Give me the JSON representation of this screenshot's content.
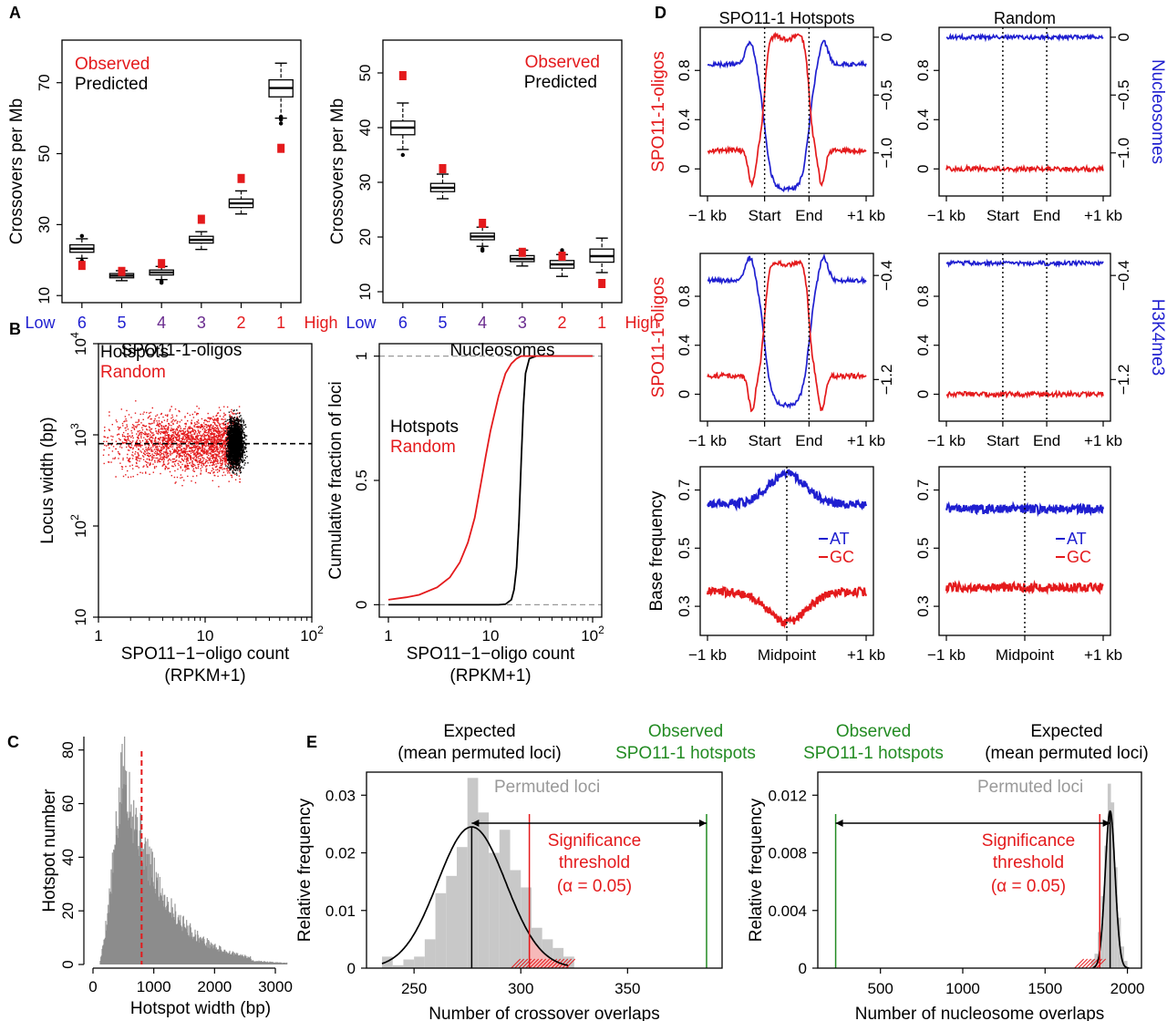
{
  "colors": {
    "red": "#e41a1c",
    "blue": "#1f1fd0",
    "black": "#000000",
    "grey": "#c8c8c8",
    "green": "#228b22",
    "purple": "#6a2c8f"
  },
  "panel_labels": {
    "a": "A",
    "b": "B",
    "c": "C",
    "d": "D",
    "e": "E"
  },
  "chart_data": [
    {
      "panel": "A-left",
      "type": "box",
      "ylabel": "Crossovers per Mb",
      "xlabel": "SPO11-1-oligos",
      "legend": [
        "Observed",
        "Predicted"
      ],
      "ylim": [
        8,
        82
      ],
      "yticks": [
        "10",
        "30",
        "50",
        "70"
      ],
      "categories": [
        "6",
        "5",
        "4",
        "3",
        "2",
        "1"
      ],
      "low_label": "Low",
      "high_label": "High",
      "predicted": [
        {
          "min": 20.5,
          "q1": 22.2,
          "med": 23.2,
          "q3": 24.3,
          "max": 26.0,
          "outliers": [
            19.8,
            26.8
          ]
        },
        {
          "min": 14.2,
          "q1": 15.0,
          "med": 15.6,
          "q3": 16.2,
          "max": 17.0,
          "outliers": []
        },
        {
          "min": 14.5,
          "q1": 15.8,
          "med": 16.5,
          "q3": 17.2,
          "max": 18.2,
          "outliers": [
            14.0,
            13.6
          ]
        },
        {
          "min": 23.0,
          "q1": 24.8,
          "med": 25.7,
          "q3": 26.7,
          "max": 28.0,
          "outliers": []
        },
        {
          "min": 33.0,
          "q1": 34.8,
          "med": 36.0,
          "q3": 37.2,
          "max": 39.5,
          "outliers": []
        },
        {
          "min": 60.0,
          "q1": 66.0,
          "med": 68.5,
          "q3": 70.8,
          "max": 75.5,
          "outliers": [
            58.5,
            59.6,
            60.4
          ]
        }
      ],
      "observed": [
        18.5,
        16.8,
        19.0,
        31.5,
        43.0,
        51.5
      ]
    },
    {
      "panel": "A-right",
      "type": "box",
      "ylabel": "Crossovers per Mb",
      "xlabel": "Nucleosomes",
      "legend": [
        "Observed",
        "Predicted"
      ],
      "ylim": [
        8,
        56
      ],
      "yticks": [
        "10",
        "20",
        "30",
        "40",
        "50"
      ],
      "categories": [
        "6",
        "5",
        "4",
        "3",
        "2",
        "1"
      ],
      "low_label": "Low",
      "high_label": "High",
      "predicted": [
        {
          "min": 36.0,
          "q1": 38.7,
          "med": 40.0,
          "q3": 41.2,
          "max": 44.5,
          "outliers": [
            35.0
          ]
        },
        {
          "min": 27.0,
          "q1": 28.3,
          "med": 29.0,
          "q3": 29.8,
          "max": 31.5,
          "outliers": []
        },
        {
          "min": 18.3,
          "q1": 19.5,
          "med": 20.1,
          "q3": 20.7,
          "max": 21.8,
          "outliers": [
            17.5,
            17.8
          ]
        },
        {
          "min": 14.7,
          "q1": 15.5,
          "med": 16.0,
          "q3": 16.6,
          "max": 17.6,
          "outliers": []
        },
        {
          "min": 12.8,
          "q1": 14.3,
          "med": 15.0,
          "q3": 15.7,
          "max": 16.8,
          "outliers": [
            17.3,
            17.6
          ]
        },
        {
          "min": 13.5,
          "q1": 15.4,
          "med": 16.5,
          "q3": 17.8,
          "max": 19.8,
          "outliers": []
        }
      ],
      "observed": [
        49.5,
        32.5,
        22.5,
        17.2,
        16.5,
        11.5
      ]
    },
    {
      "panel": "B-left",
      "type": "scatter",
      "xlabel": "SPO11−1−oligo count",
      "xlabel2": "(RPKM+1)",
      "ylabel": "Locus width (bp)",
      "legend": [
        "Hotspots",
        "Random"
      ],
      "xscale": "log",
      "yscale": "log",
      "xlim": [
        1,
        100
      ],
      "ylim": [
        10,
        10000
      ],
      "xticks": [
        {
          "v": 1,
          "b": "1"
        },
        {
          "v": 10,
          "b": "10"
        },
        {
          "v": 100,
          "b": "10",
          "e": "2"
        }
      ],
      "yticks": [
        {
          "v": 10,
          "b": "10"
        },
        {
          "v": 100,
          "b": "10",
          "e": "2"
        },
        {
          "v": 1000,
          "b": "10",
          "e": "3"
        },
        {
          "v": 10000,
          "b": "10",
          "e": "4"
        }
      ],
      "hline": 800,
      "hotspot_count_range": [
        15,
        25
      ],
      "random_count_range": [
        1,
        22
      ]
    },
    {
      "panel": "B-right",
      "type": "line",
      "xlabel": "SPO11−1−oligo count",
      "xlabel2": "(RPKM+1)",
      "ylabel": "Cumulative fraction of loci",
      "legend": [
        "Hotspots",
        "Random"
      ],
      "xscale": "log",
      "xlim": [
        1,
        100
      ],
      "ylim": [
        0,
        1
      ],
      "xticks": [
        {
          "v": 1,
          "b": "1"
        },
        {
          "v": 10,
          "b": "10"
        },
        {
          "v": 100,
          "b": "10",
          "e": "2"
        }
      ],
      "yticks": [
        {
          "v": 0,
          "t": "0"
        },
        {
          "v": 0.5,
          "t": "0.5"
        },
        {
          "v": 1,
          "t": "1"
        }
      ],
      "series": [
        {
          "name": "Hotspots",
          "x": [
            1,
            12,
            14,
            16,
            17,
            18,
            19,
            20,
            21,
            22,
            24,
            28,
            100
          ],
          "y": [
            0,
            0,
            0.002,
            0.02,
            0.06,
            0.15,
            0.33,
            0.58,
            0.8,
            0.93,
            0.99,
            1,
            1
          ]
        },
        {
          "name": "Random",
          "x": [
            1,
            1.5,
            2,
            3,
            4,
            5,
            6,
            7,
            8,
            9,
            10,
            12,
            14,
            16,
            18,
            20,
            22,
            30,
            100
          ],
          "y": [
            0.02,
            0.03,
            0.04,
            0.07,
            0.11,
            0.17,
            0.25,
            0.35,
            0.48,
            0.6,
            0.7,
            0.84,
            0.93,
            0.97,
            0.99,
            1,
            1,
            1,
            1
          ]
        }
      ]
    },
    {
      "panel": "C",
      "type": "histogram",
      "xlabel": "Hotspot width (bp)",
      "ylabel": "Hotspot number",
      "xlim": [
        0,
        3300
      ],
      "ylim": [
        0,
        85
      ],
      "xticks": [
        "0",
        "1000",
        "2000",
        "3000"
      ],
      "yticks": [
        "0",
        "20",
        "40",
        "60",
        "80"
      ],
      "median_line": 800,
      "peak": 500,
      "peak_count": 75
    },
    {
      "panel": "D-top-left",
      "type": "line",
      "title": "SPO11-1 Hotspots",
      "ylabel_left": "SPO11-1-oligos",
      "ylabel_right": "",
      "xticks": [
        "−1 kb",
        "Start",
        "End",
        "+1 kb"
      ],
      "yticks_left": [
        "0",
        "0.4",
        "0.8"
      ],
      "yticks_right": [
        "0",
        "−0.5",
        "−1.0"
      ],
      "oligos": "hotspot",
      "other": "nuc"
    },
    {
      "panel": "D-top-right",
      "type": "line",
      "title": "Random",
      "ylabel_left": "",
      "ylabel_right": "Nucleosomes",
      "xticks": [
        "−1 kb",
        "Start",
        "End",
        "+1 kb"
      ],
      "yticks_left": [
        "0",
        "0.4",
        "0.8"
      ],
      "yticks_right": [
        "0",
        "−0.5",
        "−1.0"
      ],
      "oligos": "flat",
      "other": "flat"
    },
    {
      "panel": "D-mid-left",
      "type": "line",
      "title": "",
      "ylabel_left": "SPO11-1-oligos",
      "ylabel_right": "",
      "xticks": [
        "−1 kb",
        "Start",
        "End",
        "+1 kb"
      ],
      "yticks_left": [
        "0",
        "0.4",
        "0.8"
      ],
      "yticks_right": [
        "−0.4",
        "−1.2"
      ],
      "oligos": "hotspot",
      "other": "h3k"
    },
    {
      "panel": "D-mid-right",
      "type": "line",
      "title": "",
      "ylabel_left": "",
      "ylabel_right": "H3K4me3",
      "xticks": [
        "−1 kb",
        "Start",
        "End",
        "+1 kb"
      ],
      "yticks_left": [
        "0",
        "0.4",
        "0.8"
      ],
      "yticks_right": [
        "−0.4",
        "−1.2"
      ],
      "oligos": "flat",
      "other": "flat"
    },
    {
      "panel": "D-bottom-left",
      "type": "line",
      "ylabel": "Base frequency",
      "xticks": [
        "−1 kb",
        "Midpoint",
        "+1 kb"
      ],
      "yticks": [
        "0.3",
        "0.5",
        "0.7"
      ],
      "legend": [
        "AT",
        "GC"
      ],
      "ylim": [
        0.2,
        0.78
      ],
      "series": [
        {
          "name": "AT",
          "edge": 0.65,
          "center": 0.755
        },
        {
          "name": "GC",
          "edge": 0.35,
          "center": 0.245
        }
      ]
    },
    {
      "panel": "D-bottom-right",
      "type": "line",
      "xticks": [
        "−1 kb",
        "Midpoint",
        "+1 kb"
      ],
      "yticks": [
        "0.3",
        "0.5",
        "0.7"
      ],
      "legend": [
        "AT",
        "GC"
      ],
      "ylim": [
        0.2,
        0.78
      ],
      "series": [
        {
          "name": "AT",
          "edge": 0.635,
          "center": 0.635
        },
        {
          "name": "GC",
          "edge": 0.365,
          "center": 0.365
        }
      ]
    },
    {
      "panel": "E-left",
      "type": "histogram",
      "xlabel": "Number of crossover overlaps",
      "ylabel": "Relative frequency",
      "xlim": [
        232,
        390
      ],
      "ylim": [
        0,
        0.034
      ],
      "xticks": [
        "250",
        "300",
        "350"
      ],
      "yticks": [
        "0",
        "0.01",
        "0.02",
        "0.03"
      ],
      "bins": {
        "start": 235,
        "width": 5,
        "values": [
          0.002,
          0.0005,
          0.0015,
          0.002,
          0.005,
          0.013,
          0.016,
          0.021,
          0.033,
          0.027,
          0.02,
          0.024,
          0.017,
          0.014,
          0.007,
          0.005,
          0.0035,
          0.002
        ]
      },
      "expected": 277,
      "threshold": 304,
      "observed": 387,
      "permuted_label": "Permuted loci",
      "expected_label": [
        "Expected",
        "(mean permuted loci)"
      ],
      "observed_label": [
        "Observed",
        "SPO11-1 hotspots"
      ],
      "threshold_label": [
        "Significance",
        "threshold",
        "(α = 0.05)"
      ]
    },
    {
      "panel": "E-right",
      "type": "histogram",
      "xlabel": "Number of nucleosome overlaps",
      "ylabel": "Relative frequency",
      "xlim": [
        175,
        2030
      ],
      "ylim": [
        0,
        0.0136
      ],
      "xticks": [
        "500",
        "1000",
        "1500",
        "2000"
      ],
      "yticks": [
        "0",
        "0.004",
        "0.008",
        "0.012"
      ],
      "bins": {
        "start": 1780,
        "width": 20,
        "values": [
          0.0006,
          0.001,
          0.0025,
          0.005,
          0.0085,
          0.0128,
          0.0115,
          0.007,
          0.0035,
          0.0015,
          0.0005
        ]
      },
      "expected": 1895,
      "threshold": 1832,
      "observed": 228,
      "permuted_label": "Permuted loci",
      "expected_label": [
        "Expected",
        "(mean permuted loci)"
      ],
      "observed_label": [
        "Observed",
        "SPO11-1 hotspots"
      ],
      "threshold_label": [
        "Significance",
        "threshold",
        "(α = 0.05)"
      ]
    }
  ]
}
